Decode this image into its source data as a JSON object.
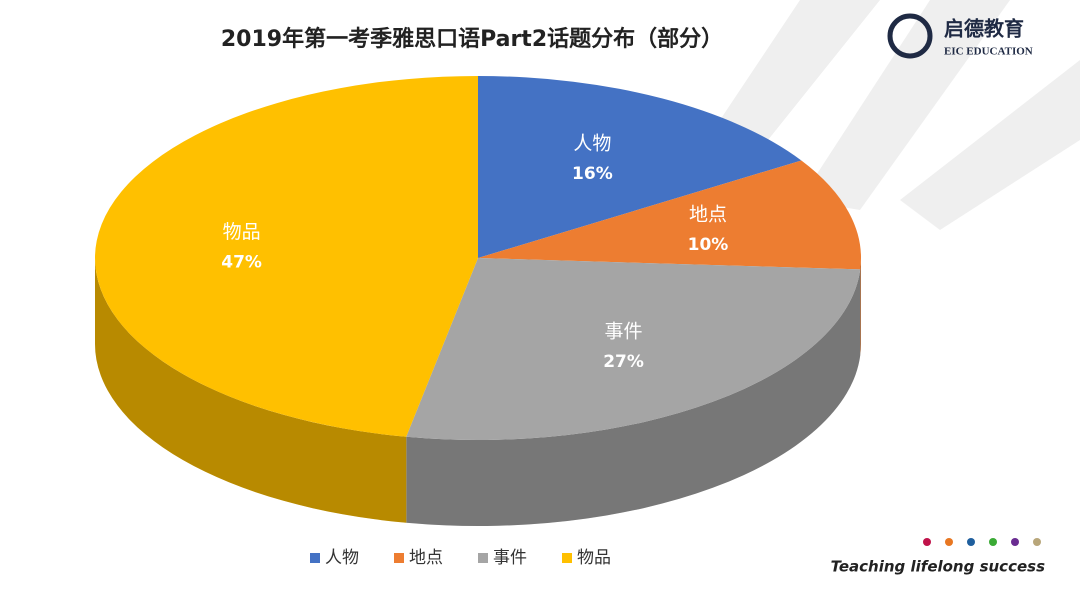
{
  "chart_data": {
    "type": "pie3d",
    "title": "2019年第一考季雅思口语Part2话题分布（部分）",
    "categories": [
      "人物",
      "地点",
      "事件",
      "物品"
    ],
    "values": [
      16,
      10,
      27,
      47
    ],
    "value_labels": [
      "16%",
      "10%",
      "27%",
      "47%"
    ],
    "colors": [
      "#4472c4",
      "#ed7d31",
      "#a5a5a5",
      "#ffc000"
    ],
    "legend": "bottom"
  },
  "branding": {
    "logo_name": "启德教育",
    "logo_subtitle": "EIC EDUCATION",
    "tagline": "Teaching lifelong success"
  }
}
